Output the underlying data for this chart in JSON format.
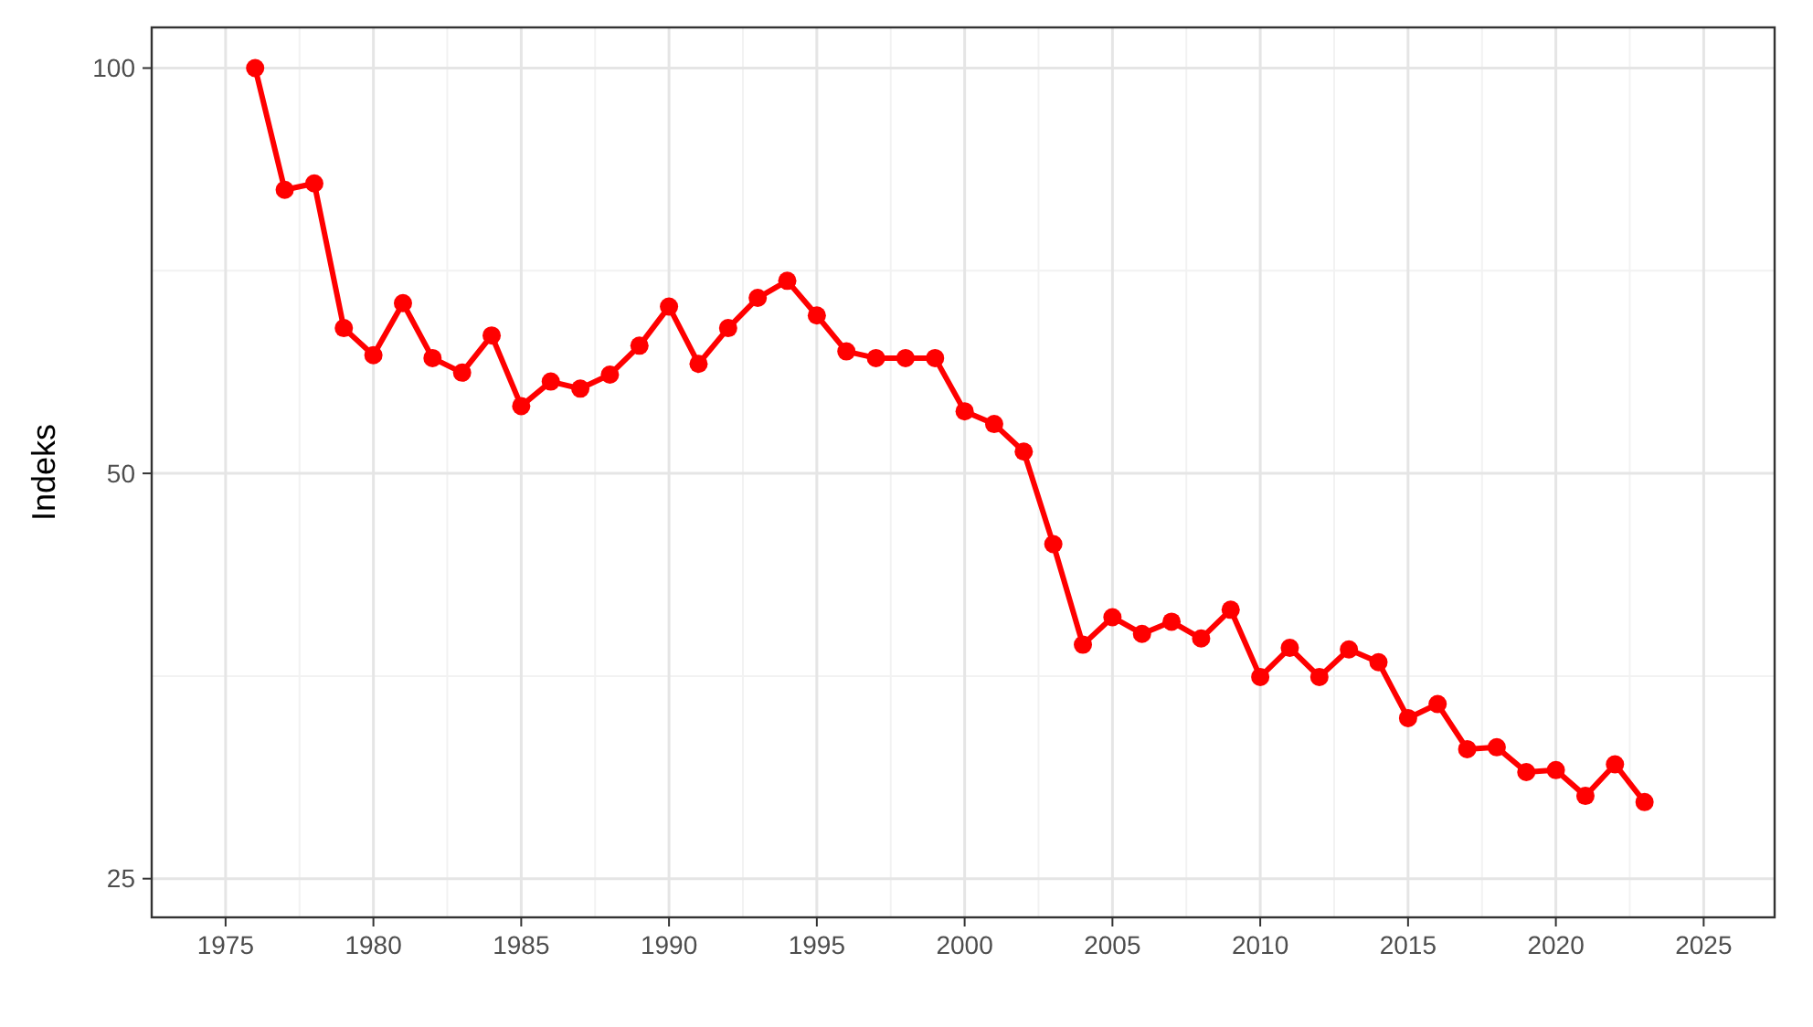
{
  "chart_data": {
    "type": "line",
    "ylabel": "Indeks",
    "log": "y",
    "grid": true,
    "marker": "circle",
    "line_style": "solid",
    "x": [
      1976,
      1977,
      1978,
      1979,
      1980,
      1981,
      1982,
      1983,
      1984,
      1985,
      1986,
      1987,
      1988,
      1989,
      1990,
      1991,
      1992,
      1993,
      1994,
      1995,
      1996,
      1997,
      1998,
      1999,
      2000,
      2001,
      2002,
      2003,
      2004,
      2005,
      2006,
      2007,
      2008,
      2009,
      2010,
      2011,
      2012,
      2013,
      2014,
      2015,
      2016,
      2017,
      2018,
      2019,
      2020,
      2021,
      2022,
      2023
    ],
    "series": [
      {
        "color": "#ff0000",
        "values": [
          100,
          81.2,
          82.1,
          64.1,
          61.2,
          66.9,
          60.9,
          59.4,
          63.3,
          56.1,
          58.5,
          57.8,
          59.2,
          62.2,
          66.5,
          60.3,
          64.1,
          67.5,
          69.5,
          65.5,
          61.6,
          60.9,
          60.9,
          60.9,
          55.6,
          54.4,
          51.9,
          44.3,
          37.3,
          39.1,
          38.0,
          38.8,
          37.7,
          39.6,
          35.3,
          37.1,
          35.3,
          37.0,
          36.2,
          32.9,
          33.7,
          31.2,
          31.3,
          30.0,
          30.1,
          28.8,
          30.4,
          28.5
        ]
      }
    ],
    "xlim": [
      1972.5,
      2027.4
    ],
    "xticks": [
      1975,
      1980,
      1985,
      1990,
      1995,
      2000,
      2005,
      2010,
      2015,
      2020,
      2025
    ],
    "ylim": [
      23.4,
      107.2
    ],
    "yticks": [
      25,
      50,
      100
    ]
  }
}
